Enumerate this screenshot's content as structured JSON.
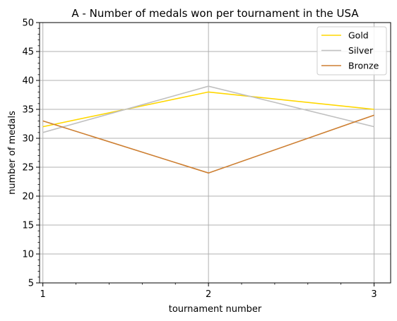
{
  "chart_data": {
    "type": "line",
    "title": "A - Number of medals won per tournament in the USA",
    "xlabel": "tournament number",
    "ylabel": "number of medals",
    "x": [
      1,
      2,
      3
    ],
    "x_ticks": [
      1,
      2,
      3
    ],
    "xlim": [
      0.98,
      3.1
    ],
    "ylim": [
      5,
      50
    ],
    "y_ticks": [
      5,
      10,
      15,
      20,
      25,
      30,
      35,
      40,
      45,
      50
    ],
    "grid": true,
    "legend_position": "top-right",
    "series": [
      {
        "name": "Gold",
        "color": "#FFD700",
        "values": [
          32,
          38,
          35
        ]
      },
      {
        "name": "Silver",
        "color": "#C0C0C0",
        "values": [
          31,
          39,
          32
        ]
      },
      {
        "name": "Bronze",
        "color": "#CD7F32",
        "values": [
          33,
          24,
          34
        ]
      }
    ]
  }
}
